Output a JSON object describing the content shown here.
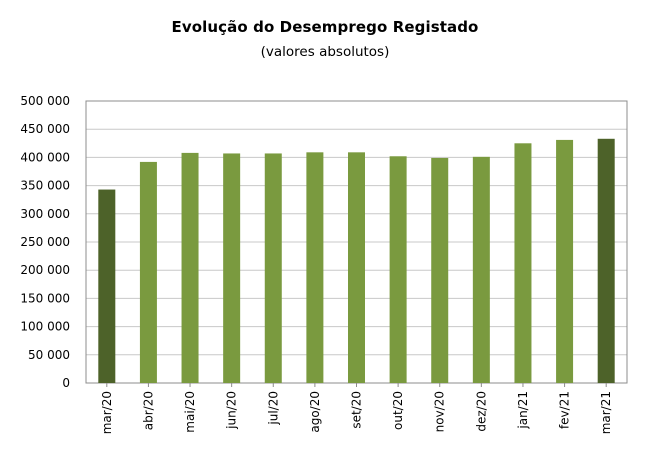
{
  "chart_data": {
    "type": "bar",
    "title": "Evolução do Desemprego Registado",
    "subtitle": "(valores absolutos)",
    "xlabel": "",
    "ylabel": "",
    "ylim": [
      0,
      500000
    ],
    "yticks": [
      0,
      50000,
      100000,
      150000,
      200000,
      250000,
      300000,
      350000,
      400000,
      450000,
      500000
    ],
    "ytick_labels": [
      "0",
      "50 000",
      "100 000",
      "150 000",
      "200 000",
      "250 000",
      "300 000",
      "350 000",
      "400 000",
      "450 000",
      "500 000"
    ],
    "categories": [
      "mar/20",
      "abr/20",
      "mai/20",
      "jun/20",
      "jul/20",
      "ago/20",
      "set/20",
      "out/20",
      "nov/20",
      "dez/20",
      "jan/21",
      "fev/21",
      "mar/21"
    ],
    "values": [
      343000,
      392000,
      408000,
      407000,
      407000,
      409000,
      409000,
      402000,
      399000,
      401000,
      425000,
      431000,
      433000
    ],
    "grid": true,
    "colors": {
      "bar": "#7a9a3f",
      "highlight_bar": "#4d6229",
      "grid": "#c8c8c8",
      "axis": "#8c8c8c"
    },
    "highlight_indices": [
      0,
      12
    ]
  }
}
